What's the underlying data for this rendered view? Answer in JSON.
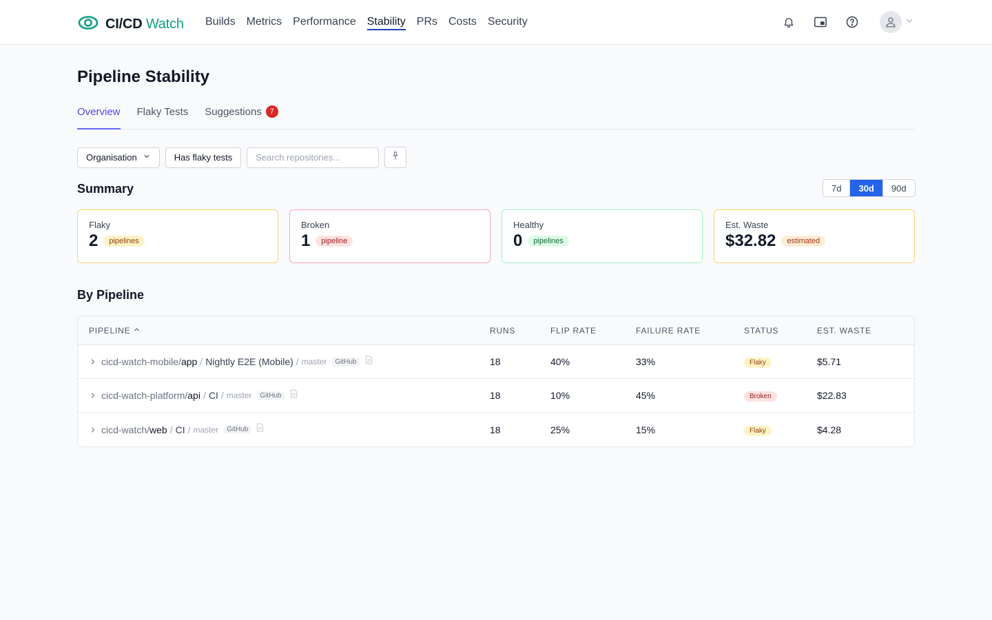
{
  "header": {
    "logo_brand": "CI/CD",
    "logo_accent": "Watch",
    "nav": [
      {
        "label": "Builds",
        "active": false
      },
      {
        "label": "Metrics",
        "active": false
      },
      {
        "label": "Performance",
        "active": false
      },
      {
        "label": "Stability",
        "active": true
      },
      {
        "label": "PRs",
        "active": false
      },
      {
        "label": "Costs",
        "active": false
      },
      {
        "label": "Security",
        "active": false
      }
    ],
    "icons": [
      "bell-icon",
      "picture-in-picture-icon",
      "help-circle-icon",
      "user-avatar-icon",
      "chevron-down-icon"
    ]
  },
  "page": {
    "title": "Pipeline Stability",
    "tabs": [
      {
        "label": "Overview",
        "active": true
      },
      {
        "label": "Flaky Tests",
        "active": false
      },
      {
        "label": "Suggestions",
        "active": false,
        "badge": "7"
      }
    ]
  },
  "filters": {
    "organisation_label": "Organisation",
    "flaky_label": "Has flaky tests",
    "search_placeholder": "Search repositories...",
    "pin_icon": "pin-icon"
  },
  "summary": {
    "title": "Summary",
    "ranges": [
      {
        "label": "7d",
        "active": false
      },
      {
        "label": "30d",
        "active": true
      },
      {
        "label": "90d",
        "active": false
      }
    ],
    "cards": [
      {
        "label": "Flaky",
        "value": "2",
        "pill": "pipelines",
        "tone": "yellow",
        "border": "#fcd679"
      },
      {
        "label": "Broken",
        "value": "1",
        "pill": "pipeline",
        "tone": "red",
        "border": "#fca5b1"
      },
      {
        "label": "Healthy",
        "value": "0",
        "pill": "pipelines",
        "tone": "green",
        "border": "#a7efc4"
      },
      {
        "label": "Est. Waste",
        "value": "$32.82",
        "pill": "estimated",
        "tone": "orange",
        "border": "#fcd679"
      }
    ]
  },
  "by_pipeline": {
    "title": "By Pipeline",
    "columns": [
      "Pipeline",
      "Runs",
      "Flip rate",
      "Failure rate",
      "Status",
      "Est. waste"
    ],
    "rows": [
      {
        "owner": "cicd-watch-mobile/",
        "repo": "app",
        "sep": "/",
        "name": "Nightly E2E (Mobile)",
        "branch_sep": "/",
        "branch": "master",
        "provider": "GitHub",
        "runs": "18",
        "flip": "40%",
        "fail": "33%",
        "status": "Flaky",
        "waste": "$5.71"
      },
      {
        "owner": "cicd-watch-platform/",
        "repo": "api",
        "sep": "/",
        "name": "CI",
        "branch_sep": "/",
        "branch": "master",
        "provider": "GitHub",
        "runs": "18",
        "flip": "10%",
        "fail": "45%",
        "status": "Broken",
        "waste": "$22.83"
      },
      {
        "owner": "cicd-watch/",
        "repo": "web",
        "sep": "/",
        "name": "CI",
        "branch_sep": "/",
        "branch": "master",
        "provider": "GitHub",
        "runs": "18",
        "flip": "25%",
        "fail": "15%",
        "status": "Flaky",
        "waste": "$4.28"
      }
    ]
  },
  "colors": {
    "accent": "#4f46e5",
    "brand_green": "#0f9f84",
    "nav_underline": "#1e40af",
    "range_active": "#2563eb",
    "badge_red": "#dc2626"
  }
}
